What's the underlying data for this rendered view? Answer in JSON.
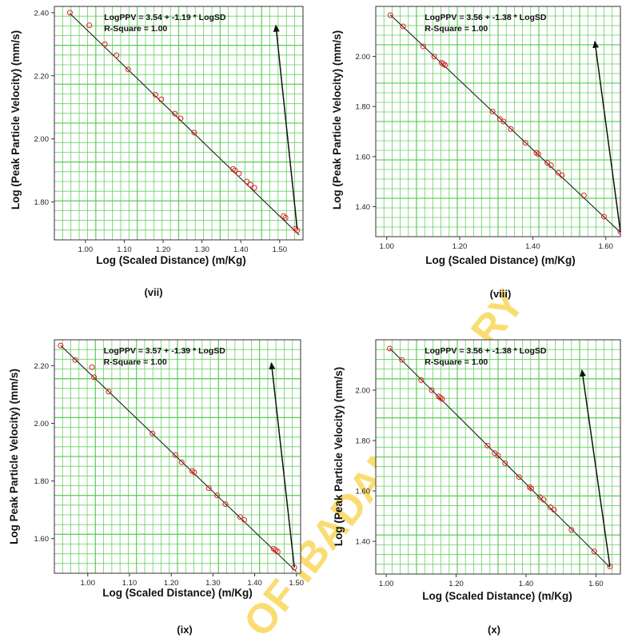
{
  "watermark": "UNIVERSITY OF IBADAN LIBRARY",
  "colors": {
    "grid": "#4fc84a",
    "point": "#e02020",
    "line": "#111111",
    "frame": "#333333",
    "watermark": "#f6c200"
  },
  "chart_data": [
    {
      "type": "scatter",
      "panel_label": "(vii)",
      "xlabel": "Log (Scaled Distance) (m/Kg)",
      "ylabel": "Log (Peak Particle Velocity) (mm/s)",
      "equation": "LogPPV = 3.54 + -1.19 * LogSD",
      "r_square": "R-Square = 1.00",
      "xlim": [
        0.92,
        1.56
      ],
      "ylim": [
        1.68,
        2.42
      ],
      "xticks": [
        1.0,
        1.1,
        1.2,
        1.3,
        1.4,
        1.5
      ],
      "xtick_labels": [
        "1.00",
        "1.10",
        "1.20",
        "1.30",
        "1.40",
        "1.50"
      ],
      "yticks": [
        1.8,
        2.0,
        2.2,
        2.4
      ],
      "ytick_labels": [
        "1.80",
        "2.00",
        "2.20",
        "2.40"
      ],
      "fit": {
        "intercept": 3.54,
        "slope": -1.19,
        "x_range": [
          0.96,
          1.55
        ]
      },
      "arrow": {
        "from": [
          1.545,
          1.715
        ],
        "to": [
          1.49,
          2.36
        ]
      },
      "points": [
        [
          0.96,
          2.4
        ],
        [
          1.01,
          2.36
        ],
        [
          1.05,
          2.3
        ],
        [
          1.08,
          2.265
        ],
        [
          1.11,
          2.22
        ],
        [
          1.18,
          2.14
        ],
        [
          1.195,
          2.125
        ],
        [
          1.23,
          2.08
        ],
        [
          1.245,
          2.065
        ],
        [
          1.28,
          2.02
        ],
        [
          1.38,
          1.905
        ],
        [
          1.385,
          1.9
        ],
        [
          1.395,
          1.89
        ],
        [
          1.415,
          1.865
        ],
        [
          1.425,
          1.855
        ],
        [
          1.435,
          1.845
        ],
        [
          1.51,
          1.755
        ],
        [
          1.515,
          1.75
        ],
        [
          1.54,
          1.715
        ],
        [
          1.545,
          1.71
        ]
      ]
    },
    {
      "type": "scatter",
      "panel_label": "(viii)",
      "xlabel": "Log (Scaled Distance) (m/Kg)",
      "ylabel": "Log (Peak Particle Velocity) (mm/s)",
      "equation": "LogPPV = 3.56 + -1.38 * LogSD",
      "r_square": "R-Square = 1.00",
      "xlim": [
        0.97,
        1.64
      ],
      "ylim": [
        1.28,
        2.2
      ],
      "xticks": [
        1.0,
        1.2,
        1.4,
        1.6
      ],
      "xtick_labels": [
        "1.00",
        "1.20",
        "1.40",
        "1.60"
      ],
      "yticks": [
        1.4,
        1.6,
        1.8,
        2.0
      ],
      "ytick_labels": [
        "1.40",
        "1.60",
        "1.80",
        "2.00"
      ],
      "fit": {
        "intercept": 3.56,
        "slope": -1.38,
        "x_range": [
          1.01,
          1.64
        ]
      },
      "arrow": {
        "from": [
          1.64,
          1.3
        ],
        "to": [
          1.57,
          2.06
        ]
      },
      "points": [
        [
          1.01,
          2.165
        ],
        [
          1.045,
          2.12
        ],
        [
          1.1,
          2.04
        ],
        [
          1.13,
          2.0
        ],
        [
          1.15,
          1.975
        ],
        [
          1.155,
          1.97
        ],
        [
          1.16,
          1.965
        ],
        [
          1.29,
          1.78
        ],
        [
          1.31,
          1.75
        ],
        [
          1.32,
          1.74
        ],
        [
          1.34,
          1.71
        ],
        [
          1.38,
          1.655
        ],
        [
          1.41,
          1.615
        ],
        [
          1.415,
          1.61
        ],
        [
          1.44,
          1.575
        ],
        [
          1.45,
          1.565
        ],
        [
          1.47,
          1.535
        ],
        [
          1.48,
          1.525
        ],
        [
          1.54,
          1.445
        ],
        [
          1.595,
          1.36
        ],
        [
          1.64,
          1.3
        ]
      ]
    },
    {
      "type": "scatter",
      "panel_label": "(ix)",
      "xlabel": "Log (Scaled Distance) (m/Kg)",
      "ylabel": "Log Peak Particle Velocity) (mm/s)",
      "equation": "LogPPV = 3.57 + -1.39 * LogSD",
      "r_square": "R-Square = 1.00",
      "xlim": [
        0.92,
        1.51
      ],
      "ylim": [
        1.48,
        2.29
      ],
      "xticks": [
        1.0,
        1.1,
        1.2,
        1.3,
        1.4,
        1.5
      ],
      "xtick_labels": [
        "1.00",
        "1.10",
        "1.20",
        "1.30",
        "1.40",
        "1.50"
      ],
      "yticks": [
        1.6,
        1.8,
        2.0,
        2.2
      ],
      "ytick_labels": [
        "1.60",
        "1.80",
        "2.00",
        "2.20"
      ],
      "fit": {
        "intercept": 3.57,
        "slope": -1.39,
        "x_range": [
          0.935,
          1.5
        ]
      },
      "arrow": {
        "from": [
          1.495,
          1.5
        ],
        "to": [
          1.44,
          2.21
        ]
      },
      "points": [
        [
          0.935,
          2.27
        ],
        [
          0.97,
          2.22
        ],
        [
          1.01,
          2.195
        ],
        [
          1.015,
          2.16
        ],
        [
          1.05,
          2.11
        ],
        [
          1.155,
          1.965
        ],
        [
          1.21,
          1.89
        ],
        [
          1.225,
          1.865
        ],
        [
          1.25,
          1.835
        ],
        [
          1.255,
          1.83
        ],
        [
          1.29,
          1.775
        ],
        [
          1.31,
          1.75
        ],
        [
          1.33,
          1.72
        ],
        [
          1.365,
          1.675
        ],
        [
          1.375,
          1.665
        ],
        [
          1.445,
          1.565
        ],
        [
          1.45,
          1.56
        ],
        [
          1.455,
          1.555
        ],
        [
          1.495,
          1.5
        ]
      ]
    },
    {
      "type": "scatter",
      "panel_label": "(x)",
      "xlabel": "Log (Scaled Distance) (m/Kg)",
      "ylabel": "Log (Peak Particle Velocity) (mm/s)",
      "equation": "LogPPV = 3.56 + -1.38 * LogSD",
      "r_square": "R-Square = 1.00",
      "xlim": [
        0.97,
        1.67
      ],
      "ylim": [
        1.27,
        2.2
      ],
      "xticks": [
        1.0,
        1.2,
        1.4,
        1.6
      ],
      "xtick_labels": [
        "1.00",
        "1.20",
        "1.40",
        "1.60"
      ],
      "yticks": [
        1.4,
        1.6,
        1.8,
        2.0
      ],
      "ytick_labels": [
        "1.40",
        "1.60",
        "1.80",
        "2.00"
      ],
      "fit": {
        "intercept": 3.56,
        "slope": -1.38,
        "x_range": [
          1.01,
          1.64
        ]
      },
      "arrow": {
        "from": [
          1.64,
          1.3
        ],
        "to": [
          1.56,
          2.08
        ]
      },
      "points": [
        [
          1.01,
          2.165
        ],
        [
          1.045,
          2.12
        ],
        [
          1.1,
          2.04
        ],
        [
          1.13,
          2.0
        ],
        [
          1.15,
          1.975
        ],
        [
          1.155,
          1.97
        ],
        [
          1.16,
          1.965
        ],
        [
          1.29,
          1.78
        ],
        [
          1.31,
          1.75
        ],
        [
          1.32,
          1.74
        ],
        [
          1.34,
          1.71
        ],
        [
          1.38,
          1.655
        ],
        [
          1.41,
          1.615
        ],
        [
          1.415,
          1.61
        ],
        [
          1.44,
          1.575
        ],
        [
          1.45,
          1.565
        ],
        [
          1.47,
          1.535
        ],
        [
          1.48,
          1.525
        ],
        [
          1.53,
          1.445
        ],
        [
          1.595,
          1.36
        ],
        [
          1.64,
          1.3
        ]
      ]
    }
  ]
}
